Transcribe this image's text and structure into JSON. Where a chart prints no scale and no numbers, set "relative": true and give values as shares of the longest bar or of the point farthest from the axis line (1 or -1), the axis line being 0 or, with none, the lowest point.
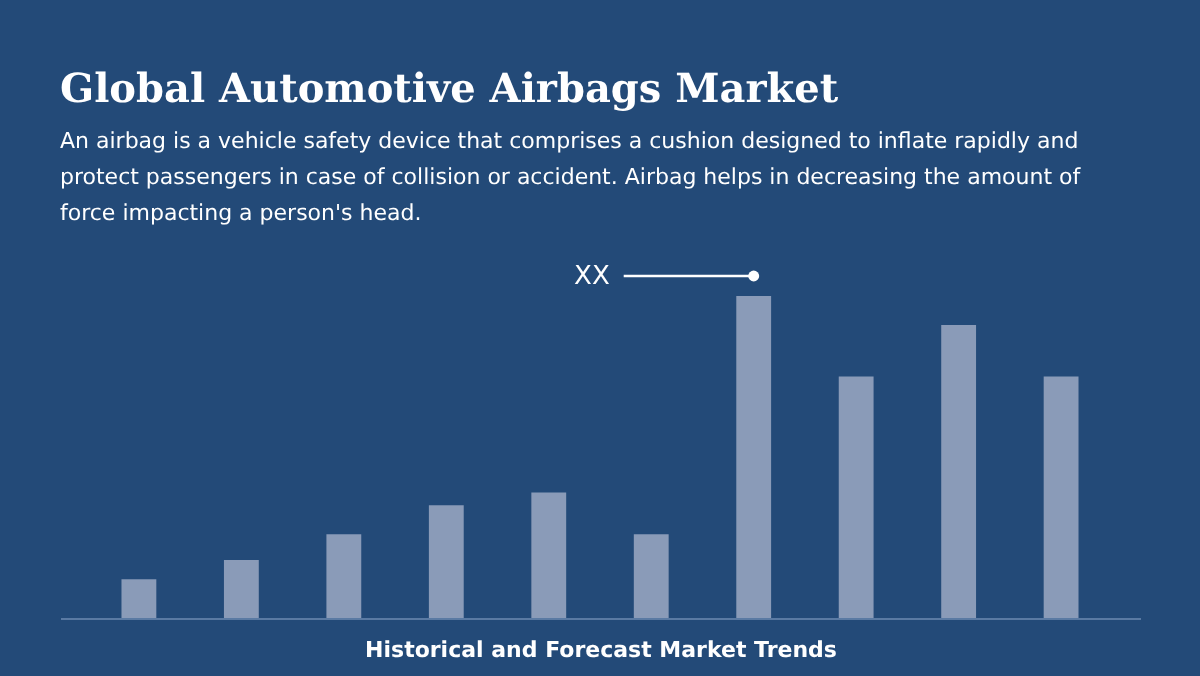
{
  "chart_data": {
    "type": "bar",
    "title": "Global Automotive Airbags Market",
    "subtitle": "An airbag is a vehicle safety device that comprises a cushion designed to inflate rapidly and protect passengers in case of collision or accident. Airbag helps in decreasing the amount of force impacting a person's head.",
    "xlabel": "Historical and Forecast Market Trends",
    "categories": [
      null,
      null,
      null,
      null,
      null,
      null,
      null,
      null,
      null,
      null
    ],
    "values": [
      0.12,
      0.18,
      0.26,
      0.35,
      0.39,
      0.26,
      1,
      0.75,
      0.91,
      0.75
    ],
    "color": "#8a9bb8",
    "relative": true,
    "grid": false,
    "annotations": [
      "XX"
    ]
  }
}
